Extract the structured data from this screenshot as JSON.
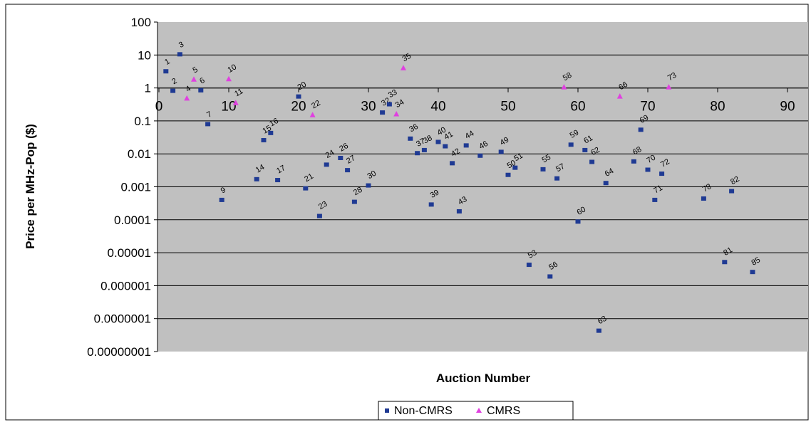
{
  "chart_data": {
    "type": "scatter",
    "xlabel": "Auction Number",
    "ylabel": "Price per MHz-Pop ($)",
    "y_scale": "log",
    "xlim": [
      0,
      90
    ],
    "ylim": [
      1e-08,
      100
    ],
    "x_ticks": [
      "0",
      "10",
      "20",
      "30",
      "40",
      "50",
      "60",
      "70",
      "80",
      "90"
    ],
    "y_ticks": [
      "100",
      "10",
      "1",
      "0.1",
      "0.01",
      "0.001",
      "0.0001",
      "0.00001",
      "0.000001",
      "0.0000001",
      "0.00000001"
    ],
    "grid": "horizontal",
    "legend_position": "bottom",
    "series": [
      {
        "name": "Non-CMRS",
        "color": "#1f3a93",
        "marker": "square",
        "points": [
          {
            "label": "1",
            "x": 1,
            "y": 3.2
          },
          {
            "label": "2",
            "x": 2,
            "y": 0.82
          },
          {
            "label": "3",
            "x": 3,
            "y": 10.5
          },
          {
            "label": "6",
            "x": 6,
            "y": 0.85
          },
          {
            "label": "7",
            "x": 7,
            "y": 0.08
          },
          {
            "label": "9",
            "x": 9,
            "y": 0.0004
          },
          {
            "label": "14",
            "x": 14,
            "y": 0.0017
          },
          {
            "label": "15",
            "x": 15,
            "y": 0.026
          },
          {
            "label": "16",
            "x": 16,
            "y": 0.043
          },
          {
            "label": "17",
            "x": 17,
            "y": 0.0016
          },
          {
            "label": "20",
            "x": 20,
            "y": 0.55
          },
          {
            "label": "21",
            "x": 21,
            "y": 0.0009
          },
          {
            "label": "23",
            "x": 23,
            "y": 0.00013
          },
          {
            "label": "24",
            "x": 24,
            "y": 0.0047
          },
          {
            "label": "26",
            "x": 26,
            "y": 0.0075
          },
          {
            "label": "27",
            "x": 27,
            "y": 0.0032
          },
          {
            "label": "28",
            "x": 28,
            "y": 0.00035
          },
          {
            "label": "30",
            "x": 30,
            "y": 0.0011
          },
          {
            "label": "32",
            "x": 32,
            "y": 0.18
          },
          {
            "label": "33",
            "x": 33,
            "y": 0.32
          },
          {
            "label": "36",
            "x": 36,
            "y": 0.029
          },
          {
            "label": "37",
            "x": 37,
            "y": 0.0105
          },
          {
            "label": "38",
            "x": 38,
            "y": 0.013
          },
          {
            "label": "39",
            "x": 39,
            "y": 0.00029
          },
          {
            "label": "40",
            "x": 40,
            "y": 0.023
          },
          {
            "label": "41",
            "x": 41,
            "y": 0.017
          },
          {
            "label": "42",
            "x": 42,
            "y": 0.0052
          },
          {
            "label": "43",
            "x": 43,
            "y": 0.00018
          },
          {
            "label": "44",
            "x": 44,
            "y": 0.018
          },
          {
            "label": "46",
            "x": 46,
            "y": 0.0088
          },
          {
            "label": "49",
            "x": 49,
            "y": 0.0115
          },
          {
            "label": "50",
            "x": 50,
            "y": 0.0023
          },
          {
            "label": "51",
            "x": 51,
            "y": 0.0038
          },
          {
            "label": "53",
            "x": 53,
            "y": 4.3e-06
          },
          {
            "label": "55",
            "x": 55,
            "y": 0.0034
          },
          {
            "label": "56",
            "x": 56,
            "y": 1.9e-06
          },
          {
            "label": "57",
            "x": 57,
            "y": 0.0018
          },
          {
            "label": "59",
            "x": 59,
            "y": 0.019
          },
          {
            "label": "60",
            "x": 60,
            "y": 8.8e-05
          },
          {
            "label": "61",
            "x": 61,
            "y": 0.013
          },
          {
            "label": "62",
            "x": 62,
            "y": 0.0057
          },
          {
            "label": "63",
            "x": 63,
            "y": 4.3e-08
          },
          {
            "label": "64",
            "x": 64,
            "y": 0.0013
          },
          {
            "label": "68",
            "x": 68,
            "y": 0.0059
          },
          {
            "label": "69",
            "x": 69,
            "y": 0.054
          },
          {
            "label": "70",
            "x": 70,
            "y": 0.0033
          },
          {
            "label": "71",
            "x": 71,
            "y": 0.0004
          },
          {
            "label": "72",
            "x": 72,
            "y": 0.0025
          },
          {
            "label": "78",
            "x": 78,
            "y": 0.00044
          },
          {
            "label": "81",
            "x": 81,
            "y": 5.2e-06
          },
          {
            "label": "82",
            "x": 82,
            "y": 0.00074
          },
          {
            "label": "85",
            "x": 85,
            "y": 2.6e-06
          }
        ]
      },
      {
        "name": "CMRS",
        "color": "#e040e0",
        "marker": "triangle",
        "points": [
          {
            "label": "4",
            "x": 4,
            "y": 0.48
          },
          {
            "label": "5",
            "x": 5,
            "y": 1.8
          },
          {
            "label": "10",
            "x": 10,
            "y": 1.85
          },
          {
            "label": "11",
            "x": 11,
            "y": 0.35
          },
          {
            "label": "22",
            "x": 22,
            "y": 0.15
          },
          {
            "label": "34",
            "x": 34,
            "y": 0.16
          },
          {
            "label": "35",
            "x": 35,
            "y": 4.0
          },
          {
            "label": "58",
            "x": 58,
            "y": 1.05
          },
          {
            "label": "66",
            "x": 66,
            "y": 0.55
          },
          {
            "label": "73",
            "x": 73,
            "y": 1.05
          }
        ]
      }
    ]
  }
}
